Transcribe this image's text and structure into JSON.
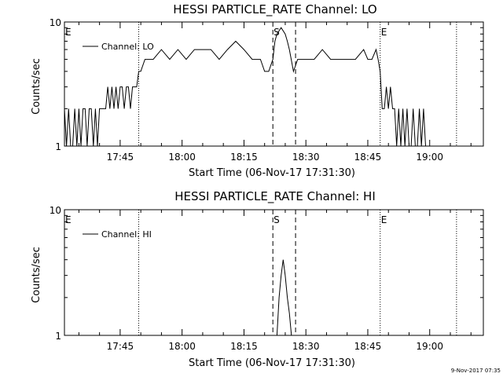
{
  "timestamp": "9-Nov-2017 07:35",
  "chart_data": [
    {
      "type": "line",
      "title": "HESSI PARTICLE_RATE Channel: LO",
      "xlabel": "Start Time (06-Nov-17 17:31:30)",
      "ylabel": "Counts/sec",
      "yscale": "log",
      "ylim": [
        1,
        10
      ],
      "y_ticks": [
        "1",
        "10"
      ],
      "x_ticks": [
        "17:45",
        "18:00",
        "18:15",
        "18:30",
        "18:45",
        "19:00"
      ],
      "legend": "Channel: LO",
      "markers": [
        {
          "label": "E",
          "time": "17:31:30",
          "line": "none"
        },
        {
          "label": "",
          "time": "17:49:30",
          "line": "dotted"
        },
        {
          "label": "S",
          "time": "18:22:00",
          "line": "dashed"
        },
        {
          "label": "",
          "time": "18:27:30",
          "line": "dashed"
        },
        {
          "label": "E",
          "time": "18:48:00",
          "line": "dotted"
        },
        {
          "label": "",
          "time": "19:06:30",
          "line": "dotted"
        }
      ],
      "series": [
        {
          "x": [
            "17:31:30",
            "17:32:00",
            "17:32:30",
            "17:33:00",
            "17:33:30",
            "17:34:00",
            "17:34:30",
            "17:35:00",
            "17:35:30",
            "17:36:00",
            "17:36:30",
            "17:37:00",
            "17:37:30",
            "17:38:00",
            "17:38:30",
            "17:39:00",
            "17:39:30",
            "17:40:00",
            "17:40:30",
            "17:41:00",
            "17:41:30",
            "17:42:00",
            "17:42:30",
            "17:43:00",
            "17:43:30",
            "17:44:00",
            "17:44:30",
            "17:45:00",
            "17:45:30",
            "17:46:00",
            "17:46:30",
            "17:47:00",
            "17:47:30",
            "17:48:00",
            "17:48:30",
            "17:49:00",
            "17:49:30",
            "17:50:00",
            "17:51:00",
            "17:52:00",
            "17:53:00",
            "17:55:00",
            "17:57:00",
            "17:59:00",
            "18:01:00",
            "18:03:00",
            "18:05:00",
            "18:07:00",
            "18:09:00",
            "18:11:00",
            "18:13:00",
            "18:15:00",
            "18:17:00",
            "18:19:00",
            "18:20:00",
            "18:21:00",
            "18:22:00",
            "18:22:30",
            "18:23:00",
            "18:24:00",
            "18:25:00",
            "18:25:30",
            "18:26:00",
            "18:27:00",
            "18:28:00",
            "18:30:00",
            "18:32:00",
            "18:34:00",
            "18:36:00",
            "18:38:00",
            "18:40:00",
            "18:42:00",
            "18:44:00",
            "18:45:00",
            "18:46:00",
            "18:47:00",
            "18:47:30",
            "18:48:00",
            "18:48:30",
            "18:49:00",
            "18:49:30",
            "18:50:00",
            "18:50:30",
            "18:51:00",
            "18:51:30",
            "18:52:00",
            "18:52:30",
            "18:53:00",
            "18:53:30",
            "18:54:00",
            "18:54:30",
            "18:55:00",
            "18:55:30",
            "18:56:00",
            "18:56:30",
            "18:57:00",
            "18:57:30",
            "18:58:00",
            "18:58:30",
            "18:59:00",
            "18:59:30",
            "19:00:00",
            "19:00:30",
            "19:01:00",
            "19:01:30",
            "19:02:00",
            "19:02:30",
            "19:03:00",
            "19:03:30",
            "19:04:00",
            "19:04:30",
            "19:05:00",
            "19:05:30"
          ],
          "y": [
            2,
            1,
            2,
            1,
            1,
            2,
            1,
            2,
            1,
            2,
            2,
            1,
            2,
            2,
            1,
            2,
            1,
            2,
            2,
            2,
            2,
            3,
            2,
            3,
            2,
            3,
            2,
            3,
            3,
            2,
            3,
            3,
            2,
            3,
            3,
            3,
            4,
            4,
            5,
            5,
            5,
            6,
            5,
            6,
            5,
            6,
            6,
            6,
            5,
            6,
            7,
            6,
            5,
            5,
            4,
            4,
            5,
            7,
            8,
            9,
            8,
            7,
            6,
            4,
            5,
            5,
            5,
            6,
            5,
            5,
            5,
            5,
            6,
            5,
            5,
            6,
            5,
            4,
            2,
            2,
            3,
            2,
            3,
            2,
            2,
            1,
            2,
            1,
            2,
            1,
            2,
            1,
            1,
            2,
            1,
            1,
            2,
            1,
            2,
            1,
            1,
            1,
            1,
            1,
            1,
            1,
            1,
            1,
            1,
            1,
            1,
            1,
            1
          ]
        }
      ]
    },
    {
      "type": "line",
      "title": "HESSI PARTICLE_RATE Channel: HI",
      "xlabel": "Start Time (06-Nov-17 17:31:30)",
      "ylabel": "Counts/sec",
      "yscale": "log",
      "ylim": [
        1,
        10
      ],
      "y_ticks": [
        "1",
        "10"
      ],
      "x_ticks": [
        "17:45",
        "18:00",
        "18:15",
        "18:30",
        "18:45",
        "19:00"
      ],
      "legend": "Channel: HI",
      "markers": [
        {
          "label": "E",
          "time": "17:31:30",
          "line": "none"
        },
        {
          "label": "",
          "time": "17:49:30",
          "line": "dotted"
        },
        {
          "label": "S",
          "time": "18:22:00",
          "line": "dashed"
        },
        {
          "label": "",
          "time": "18:27:30",
          "line": "dashed"
        },
        {
          "label": "E",
          "time": "18:48:00",
          "line": "dotted"
        },
        {
          "label": "",
          "time": "19:06:30",
          "line": "dotted"
        }
      ],
      "series": [
        {
          "x": [
            "18:23:00",
            "18:23:30",
            "18:24:00",
            "18:24:30",
            "18:25:00",
            "18:25:30",
            "18:26:00",
            "18:26:30",
            "18:27:00"
          ],
          "y": [
            1,
            2,
            3,
            4,
            3,
            2,
            1.5,
            1,
            1
          ]
        }
      ]
    }
  ]
}
